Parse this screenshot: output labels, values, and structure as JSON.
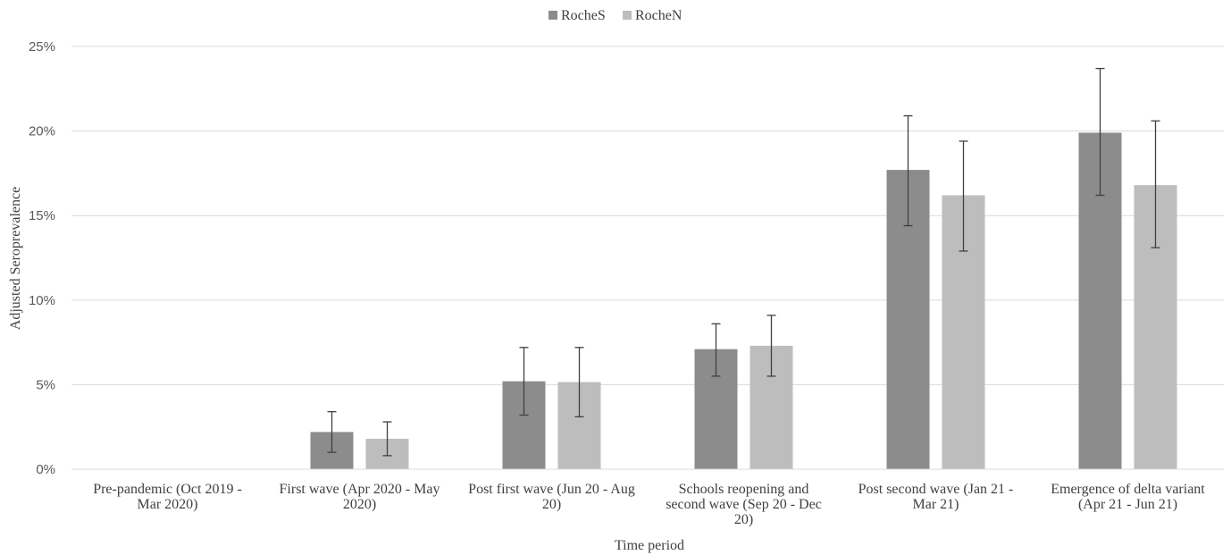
{
  "chart_data": {
    "type": "bar",
    "title": "",
    "xlabel": "Time period",
    "ylabel": "Adjusted Seroprevalence",
    "ylim": [
      0,
      25
    ],
    "yticks": [
      "0%",
      "5%",
      "10%",
      "15%",
      "20%",
      "25%"
    ],
    "grid": true,
    "legend_position": "top-center",
    "categories": [
      [
        "Pre-pandemic (Oct 2019 -",
        "Mar 2020)"
      ],
      [
        "First wave (Apr 2020 - May",
        "2020)"
      ],
      [
        "Post first wave (Jun 20 - Aug",
        "20)"
      ],
      [
        "Schools reopening and",
        "second wave (Sep 20 - Dec",
        "20)"
      ],
      [
        "Post second wave (Jan 21 -",
        "Mar 21)"
      ],
      [
        "Emergence of delta variant",
        "(Apr 21 - Jun 21)"
      ]
    ],
    "series": [
      {
        "name": "RocheS",
        "color": "#8c8c8c",
        "values": [
          0,
          2.2,
          5.2,
          7.1,
          17.7,
          19.9
        ],
        "err_low": [
          null,
          1.0,
          3.2,
          5.5,
          14.4,
          16.2
        ],
        "err_high": [
          null,
          3.4,
          7.2,
          8.6,
          20.9,
          23.7
        ]
      },
      {
        "name": "RocheN",
        "color": "#bdbdbd",
        "values": [
          0,
          1.8,
          5.15,
          7.3,
          16.2,
          16.8
        ],
        "err_low": [
          null,
          0.8,
          3.1,
          5.5,
          12.9,
          13.1
        ],
        "err_high": [
          null,
          2.8,
          7.2,
          9.1,
          19.4,
          20.6
        ]
      }
    ]
  }
}
